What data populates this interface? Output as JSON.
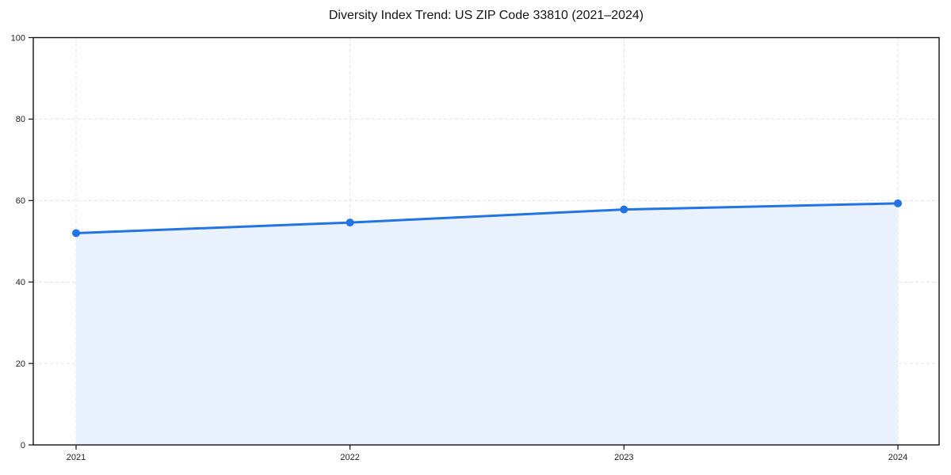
{
  "chart": {
    "title": "Diversity Index Trend: US ZIP Code 33810 (2021–2024)"
  },
  "chart_data": {
    "type": "area",
    "title": "Diversity Index Trend: US ZIP Code 33810 (2021–2024)",
    "categories": [
      "2021",
      "2022",
      "2023",
      "2024"
    ],
    "series": [
      {
        "name": "Diversity Index",
        "values": [
          52.0,
          54.6,
          57.8,
          59.3
        ]
      }
    ],
    "xlabel": "",
    "ylabel": "",
    "ylim": [
      0,
      100
    ],
    "yticks": [
      0,
      20,
      40,
      60,
      80,
      100
    ],
    "grid": "dashed",
    "legend": "none",
    "colors": {
      "line": "#2273e6",
      "marker": "#2273e6",
      "fill": "#e9f1fc",
      "gridline": "#e2e2e2",
      "spine": "#111111",
      "tick_text": "#222222",
      "background": "#ffffff"
    }
  }
}
